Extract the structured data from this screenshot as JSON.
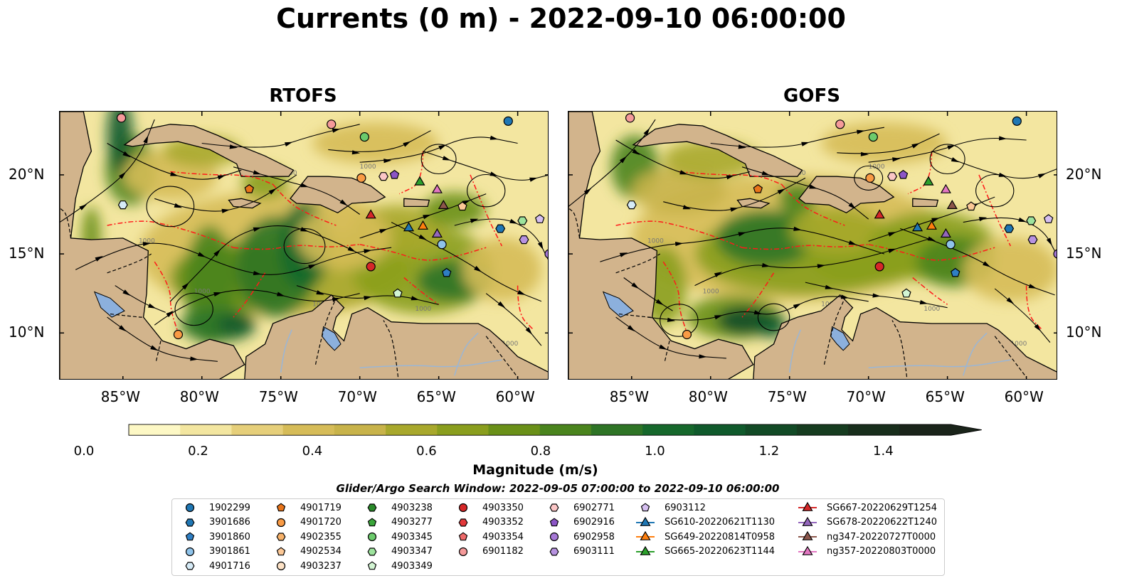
{
  "title": "Currents (0 m) - 2022-09-10 06:00:00",
  "panels": [
    {
      "name": "RTOFS"
    },
    {
      "name": "GOFS"
    }
  ],
  "map": {
    "lon_range": [
      -89,
      -58
    ],
    "lat_range": [
      7,
      24
    ],
    "lon_ticks": [
      "85°W",
      "80°W",
      "75°W",
      "70°W",
      "65°W",
      "60°W"
    ],
    "lat_ticks": [
      "20°N",
      "15°N",
      "10°N"
    ],
    "colors": {
      "land": "#d2b48c",
      "lake": "#8cb0dd",
      "eez": "#ff1a1a",
      "streamline": "#000000"
    }
  },
  "colorbar": {
    "label": "Magnitude (m/s)",
    "ticks": [
      "0.0",
      "0.2",
      "0.4",
      "0.6",
      "0.8",
      "1.0",
      "1.2",
      "1.4"
    ],
    "colors": [
      "#fdf8c5",
      "#f3e6a0",
      "#e6cf7a",
      "#d6bc58",
      "#c8b34a",
      "#a8a82c",
      "#8a9e1e",
      "#6a9018",
      "#4a841e",
      "#2e7426",
      "#16682c",
      "#105a2c",
      "#124a26",
      "#163c20",
      "#182e1c",
      "#1a241a"
    ]
  },
  "search_window": "Glider/Argo Search Window: 2022-09-05 07:00:00 to 2022-09-10 06:00:00",
  "legend": [
    {
      "label": "1902299",
      "marker": "circle",
      "color": "#1f77b4"
    },
    {
      "label": "3901686",
      "marker": "hexagon",
      "color": "#1f77b4"
    },
    {
      "label": "3901860",
      "marker": "pentagon",
      "color": "#2f7fc4"
    },
    {
      "label": "3901861",
      "marker": "circle",
      "color": "#8fc3ea"
    },
    {
      "label": "4901716",
      "marker": "hexagon",
      "color": "#d6ebf7"
    },
    {
      "label": "4901719",
      "marker": "pentagon",
      "color": "#e8741a"
    },
    {
      "label": "4901720",
      "marker": "circle",
      "color": "#f99b45"
    },
    {
      "label": "4902355",
      "marker": "hexagon",
      "color": "#f7b26a"
    },
    {
      "label": "4902534",
      "marker": "pentagon",
      "color": "#fcc896"
    },
    {
      "label": "4903237",
      "marker": "circle",
      "color": "#fde2c6"
    },
    {
      "label": "4903238",
      "marker": "hexagon",
      "color": "#2a8a2a"
    },
    {
      "label": "4903277",
      "marker": "pentagon",
      "color": "#3aa53a"
    },
    {
      "label": "4903345",
      "marker": "circle",
      "color": "#6ccb6c"
    },
    {
      "label": "4903347",
      "marker": "hexagon",
      "color": "#9de39d"
    },
    {
      "label": "4903349",
      "marker": "pentagon",
      "color": "#d3f5d3"
    },
    {
      "label": "4903350",
      "marker": "circle",
      "color": "#d62728"
    },
    {
      "label": "4903352",
      "marker": "hexagon",
      "color": "#e2383a"
    },
    {
      "label": "4903354",
      "marker": "pentagon",
      "color": "#ee6a6a"
    },
    {
      "label": "6901182",
      "marker": "circle",
      "color": "#f59a9a"
    },
    {
      "label": "6902771",
      "marker": "hexagon",
      "color": "#fbc6c6"
    },
    {
      "label": "6902916",
      "marker": "pentagon",
      "color": "#8c55c6"
    },
    {
      "label": "6902958",
      "marker": "circle",
      "color": "#a678d6"
    },
    {
      "label": "6903111",
      "marker": "hexagon",
      "color": "#b792e0"
    },
    {
      "label": "6903112",
      "marker": "pentagon",
      "color": "#d5bff0"
    },
    {
      "label": "SG610-20220621T1130",
      "marker": "triangle-line",
      "color": "#1f77b4"
    },
    {
      "label": "SG649-20220814T0958",
      "marker": "triangle-line",
      "color": "#ff7f0e"
    },
    {
      "label": "SG665-20220623T1144",
      "marker": "triangle-line",
      "color": "#2ca02c"
    },
    {
      "label": "SG667-20220629T1254",
      "marker": "triangle-line",
      "color": "#d62728"
    },
    {
      "label": "SG678-20220622T1240",
      "marker": "triangle-line",
      "color": "#9467bd"
    },
    {
      "label": "ng347-20220727T0000",
      "marker": "triangle-line",
      "color": "#8c564b"
    },
    {
      "label": "ng357-20220803T0000",
      "marker": "triangle-line",
      "color": "#e377c2"
    }
  ],
  "markers": [
    {
      "lon": -85.1,
      "lat": 23.6,
      "color": "#f59a9a",
      "marker": "circle"
    },
    {
      "lon": -71.8,
      "lat": 23.2,
      "color": "#f59a9a",
      "marker": "circle"
    },
    {
      "lon": -60.6,
      "lat": 23.4,
      "color": "#1f77b4",
      "marker": "circle"
    },
    {
      "lon": -69.7,
      "lat": 22.4,
      "color": "#6ccb6c",
      "marker": "circle"
    },
    {
      "lon": -77.0,
      "lat": 19.1,
      "color": "#e8741a",
      "marker": "pentagon"
    },
    {
      "lon": -85.0,
      "lat": 18.1,
      "color": "#d6ebf7",
      "marker": "hexagon"
    },
    {
      "lon": -69.9,
      "lat": 19.8,
      "color": "#f99b45",
      "marker": "circle"
    },
    {
      "lon": -68.5,
      "lat": 19.9,
      "color": "#fbc6c6",
      "marker": "hexagon"
    },
    {
      "lon": -67.8,
      "lat": 20.0,
      "color": "#8c55c6",
      "marker": "pentagon"
    },
    {
      "lon": -66.2,
      "lat": 19.6,
      "color": "#2ca02c",
      "marker": "triangle"
    },
    {
      "lon": -65.1,
      "lat": 19.1,
      "color": "#e377c2",
      "marker": "triangle"
    },
    {
      "lon": -64.7,
      "lat": 18.1,
      "color": "#8c564b",
      "marker": "triangle"
    },
    {
      "lon": -63.5,
      "lat": 18.0,
      "color": "#fcc896",
      "marker": "pentagon"
    },
    {
      "lon": -69.3,
      "lat": 17.5,
      "color": "#d62728",
      "marker": "triangle"
    },
    {
      "lon": -66.9,
      "lat": 16.7,
      "color": "#1f77b4",
      "marker": "triangle"
    },
    {
      "lon": -66.0,
      "lat": 16.8,
      "color": "#ff7f0e",
      "marker": "triangle"
    },
    {
      "lon": -65.1,
      "lat": 16.3,
      "color": "#9467bd",
      "marker": "triangle"
    },
    {
      "lon": -64.8,
      "lat": 15.6,
      "color": "#8fc3ea",
      "marker": "circle"
    },
    {
      "lon": -61.1,
      "lat": 16.6,
      "color": "#1f77b4",
      "marker": "hexagon"
    },
    {
      "lon": -59.7,
      "lat": 17.1,
      "color": "#9de39d",
      "marker": "hexagon"
    },
    {
      "lon": -58.6,
      "lat": 17.2,
      "color": "#d5bff0",
      "marker": "pentagon"
    },
    {
      "lon": -59.6,
      "lat": 15.9,
      "color": "#b792e0",
      "marker": "hexagon"
    },
    {
      "lon": -58.0,
      "lat": 15.0,
      "color": "#a678d6",
      "marker": "circle"
    },
    {
      "lon": -69.3,
      "lat": 14.2,
      "color": "#d62728",
      "marker": "circle"
    },
    {
      "lon": -64.5,
      "lat": 13.8,
      "color": "#2f7fc4",
      "marker": "pentagon"
    },
    {
      "lon": -67.6,
      "lat": 12.5,
      "color": "#d3f5d3",
      "marker": "pentagon"
    },
    {
      "lon": -81.5,
      "lat": 9.9,
      "color": "#f99b45",
      "marker": "circle"
    }
  ]
}
